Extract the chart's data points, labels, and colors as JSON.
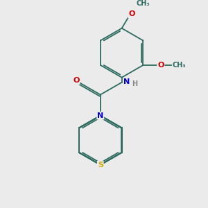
{
  "background_color": "#ebebeb",
  "bond_color": "#2d6b5e",
  "bond_width": 1.3,
  "atom_colors": {
    "N": "#0000cc",
    "O": "#cc0000",
    "S": "#ccaa00",
    "H": "#888888",
    "C": "#2d6b5e"
  },
  "label_fontsize": 7.5
}
